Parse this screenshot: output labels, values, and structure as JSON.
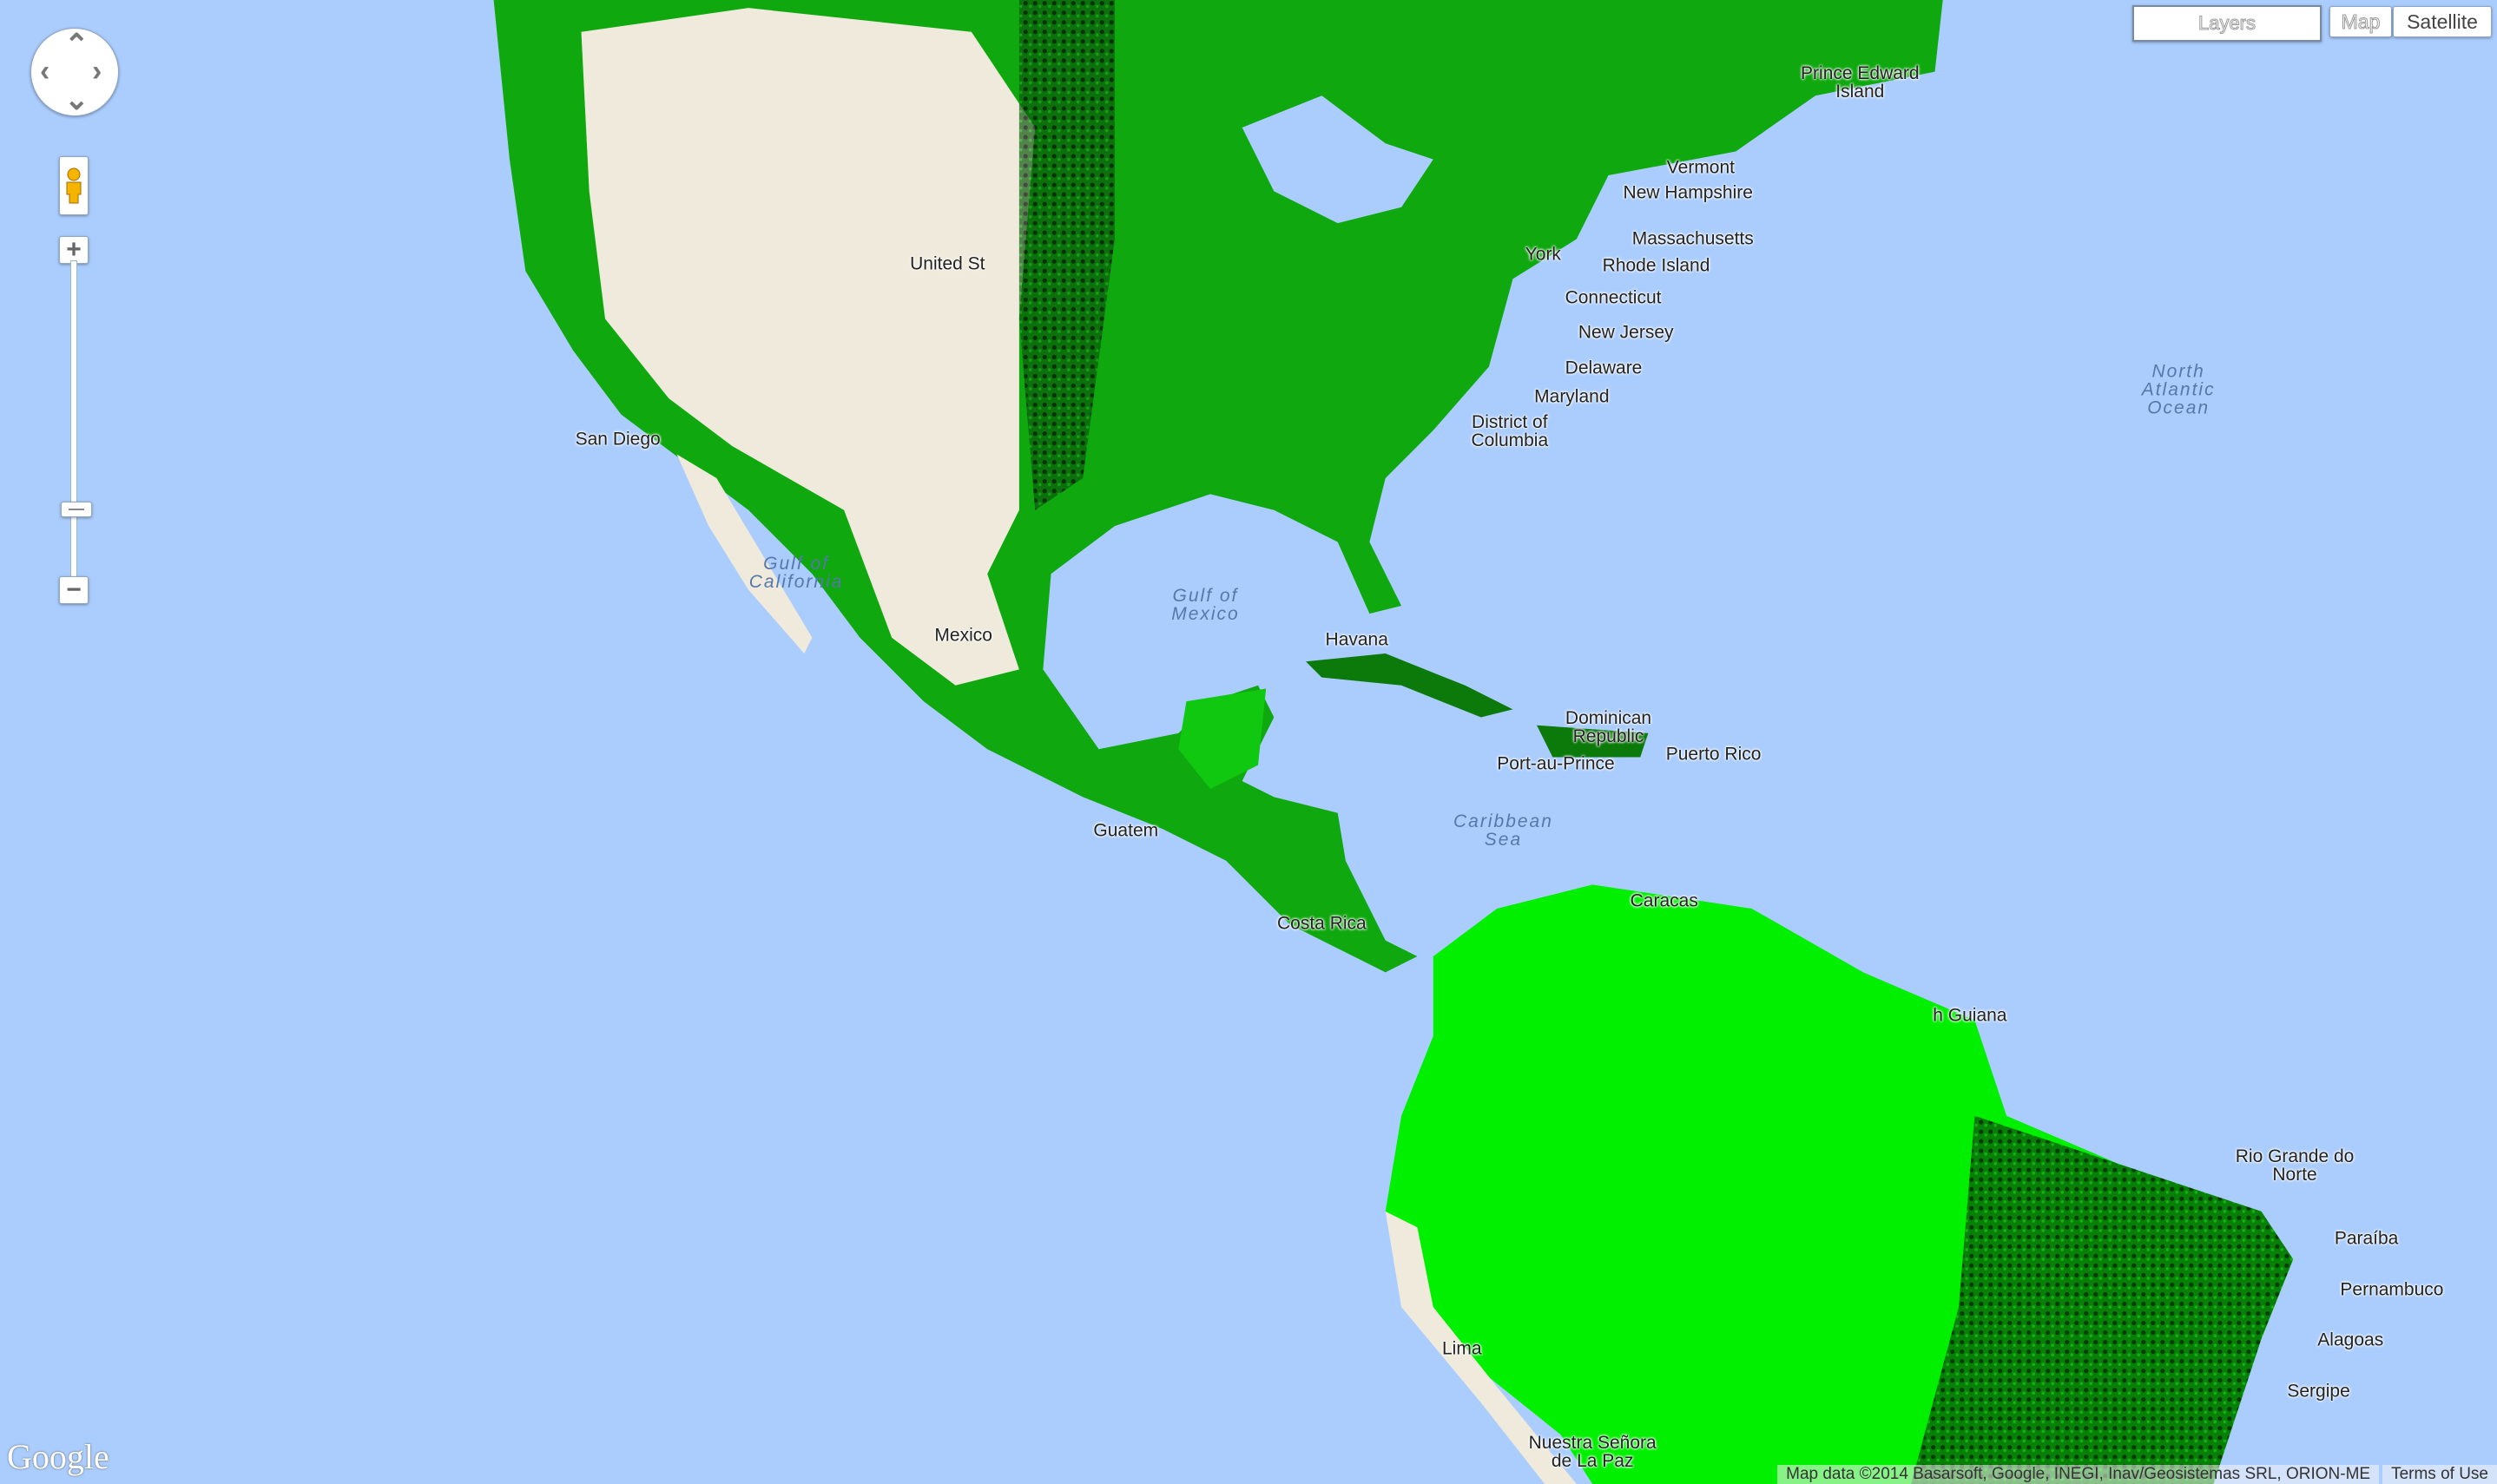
{
  "controls": {
    "layers_label": "Layers",
    "map_label": "Map",
    "satellite_label": "Satellite",
    "zoom_in": "+",
    "zoom_out": "−",
    "zoom_level_fraction": 0.24
  },
  "colors": {
    "water": "#abcdfd",
    "vegetation_bright": "#00ff00",
    "vegetation_dark": "#0a4a0a",
    "desert": "#efeadb"
  },
  "labels": [
    {
      "text": "Prince Edward Island",
      "kind": "place"
    },
    {
      "text": "Vermont",
      "kind": "place"
    },
    {
      "text": "New Hampshire",
      "kind": "place"
    },
    {
      "text": "Massachusetts",
      "kind": "place"
    },
    {
      "text": "Rhode Island",
      "kind": "place"
    },
    {
      "text": "Connecticut",
      "kind": "place"
    },
    {
      "text": "New Jersey",
      "kind": "place"
    },
    {
      "text": "Delaware",
      "kind": "place"
    },
    {
      "text": "Maryland",
      "kind": "place"
    },
    {
      "text": "District of Columbia",
      "kind": "place"
    },
    {
      "text": "York",
      "kind": "place"
    },
    {
      "text": "United St",
      "kind": "place"
    },
    {
      "text": "San Diego",
      "kind": "place"
    },
    {
      "text": "Gulf of California",
      "kind": "water"
    },
    {
      "text": "Mexico",
      "kind": "place"
    },
    {
      "text": "Gulf of Mexico",
      "kind": "water"
    },
    {
      "text": "Havana",
      "kind": "place"
    },
    {
      "text": "Dominican Republic",
      "kind": "place"
    },
    {
      "text": "Port-au-Prince",
      "kind": "place"
    },
    {
      "text": "Puerto Rico",
      "kind": "place"
    },
    {
      "text": "Caribbean Sea",
      "kind": "water"
    },
    {
      "text": "Guatem",
      "kind": "place"
    },
    {
      "text": "Costa Rica",
      "kind": "place"
    },
    {
      "text": "Caracas",
      "kind": "place"
    },
    {
      "text": "h Guiana",
      "kind": "place"
    },
    {
      "text": "North Atlantic Ocean",
      "kind": "water"
    },
    {
      "text": "Lima",
      "kind": "place"
    },
    {
      "text": "Nuestra Señora de La Paz",
      "kind": "place"
    },
    {
      "text": "Rio Grande do Norte",
      "kind": "place"
    },
    {
      "text": "Paraíba",
      "kind": "place"
    },
    {
      "text": "Pernambuco",
      "kind": "place"
    },
    {
      "text": "Alagoas",
      "kind": "place"
    },
    {
      "text": "Sergipe",
      "kind": "place"
    }
  ],
  "attribution": {
    "map_data": "Map data ©2014 Basarsoft, Google, INEGI, Inav/Geosistemas SRL, ORION-ME",
    "terms": "Terms of Use"
  },
  "logo": "Google"
}
